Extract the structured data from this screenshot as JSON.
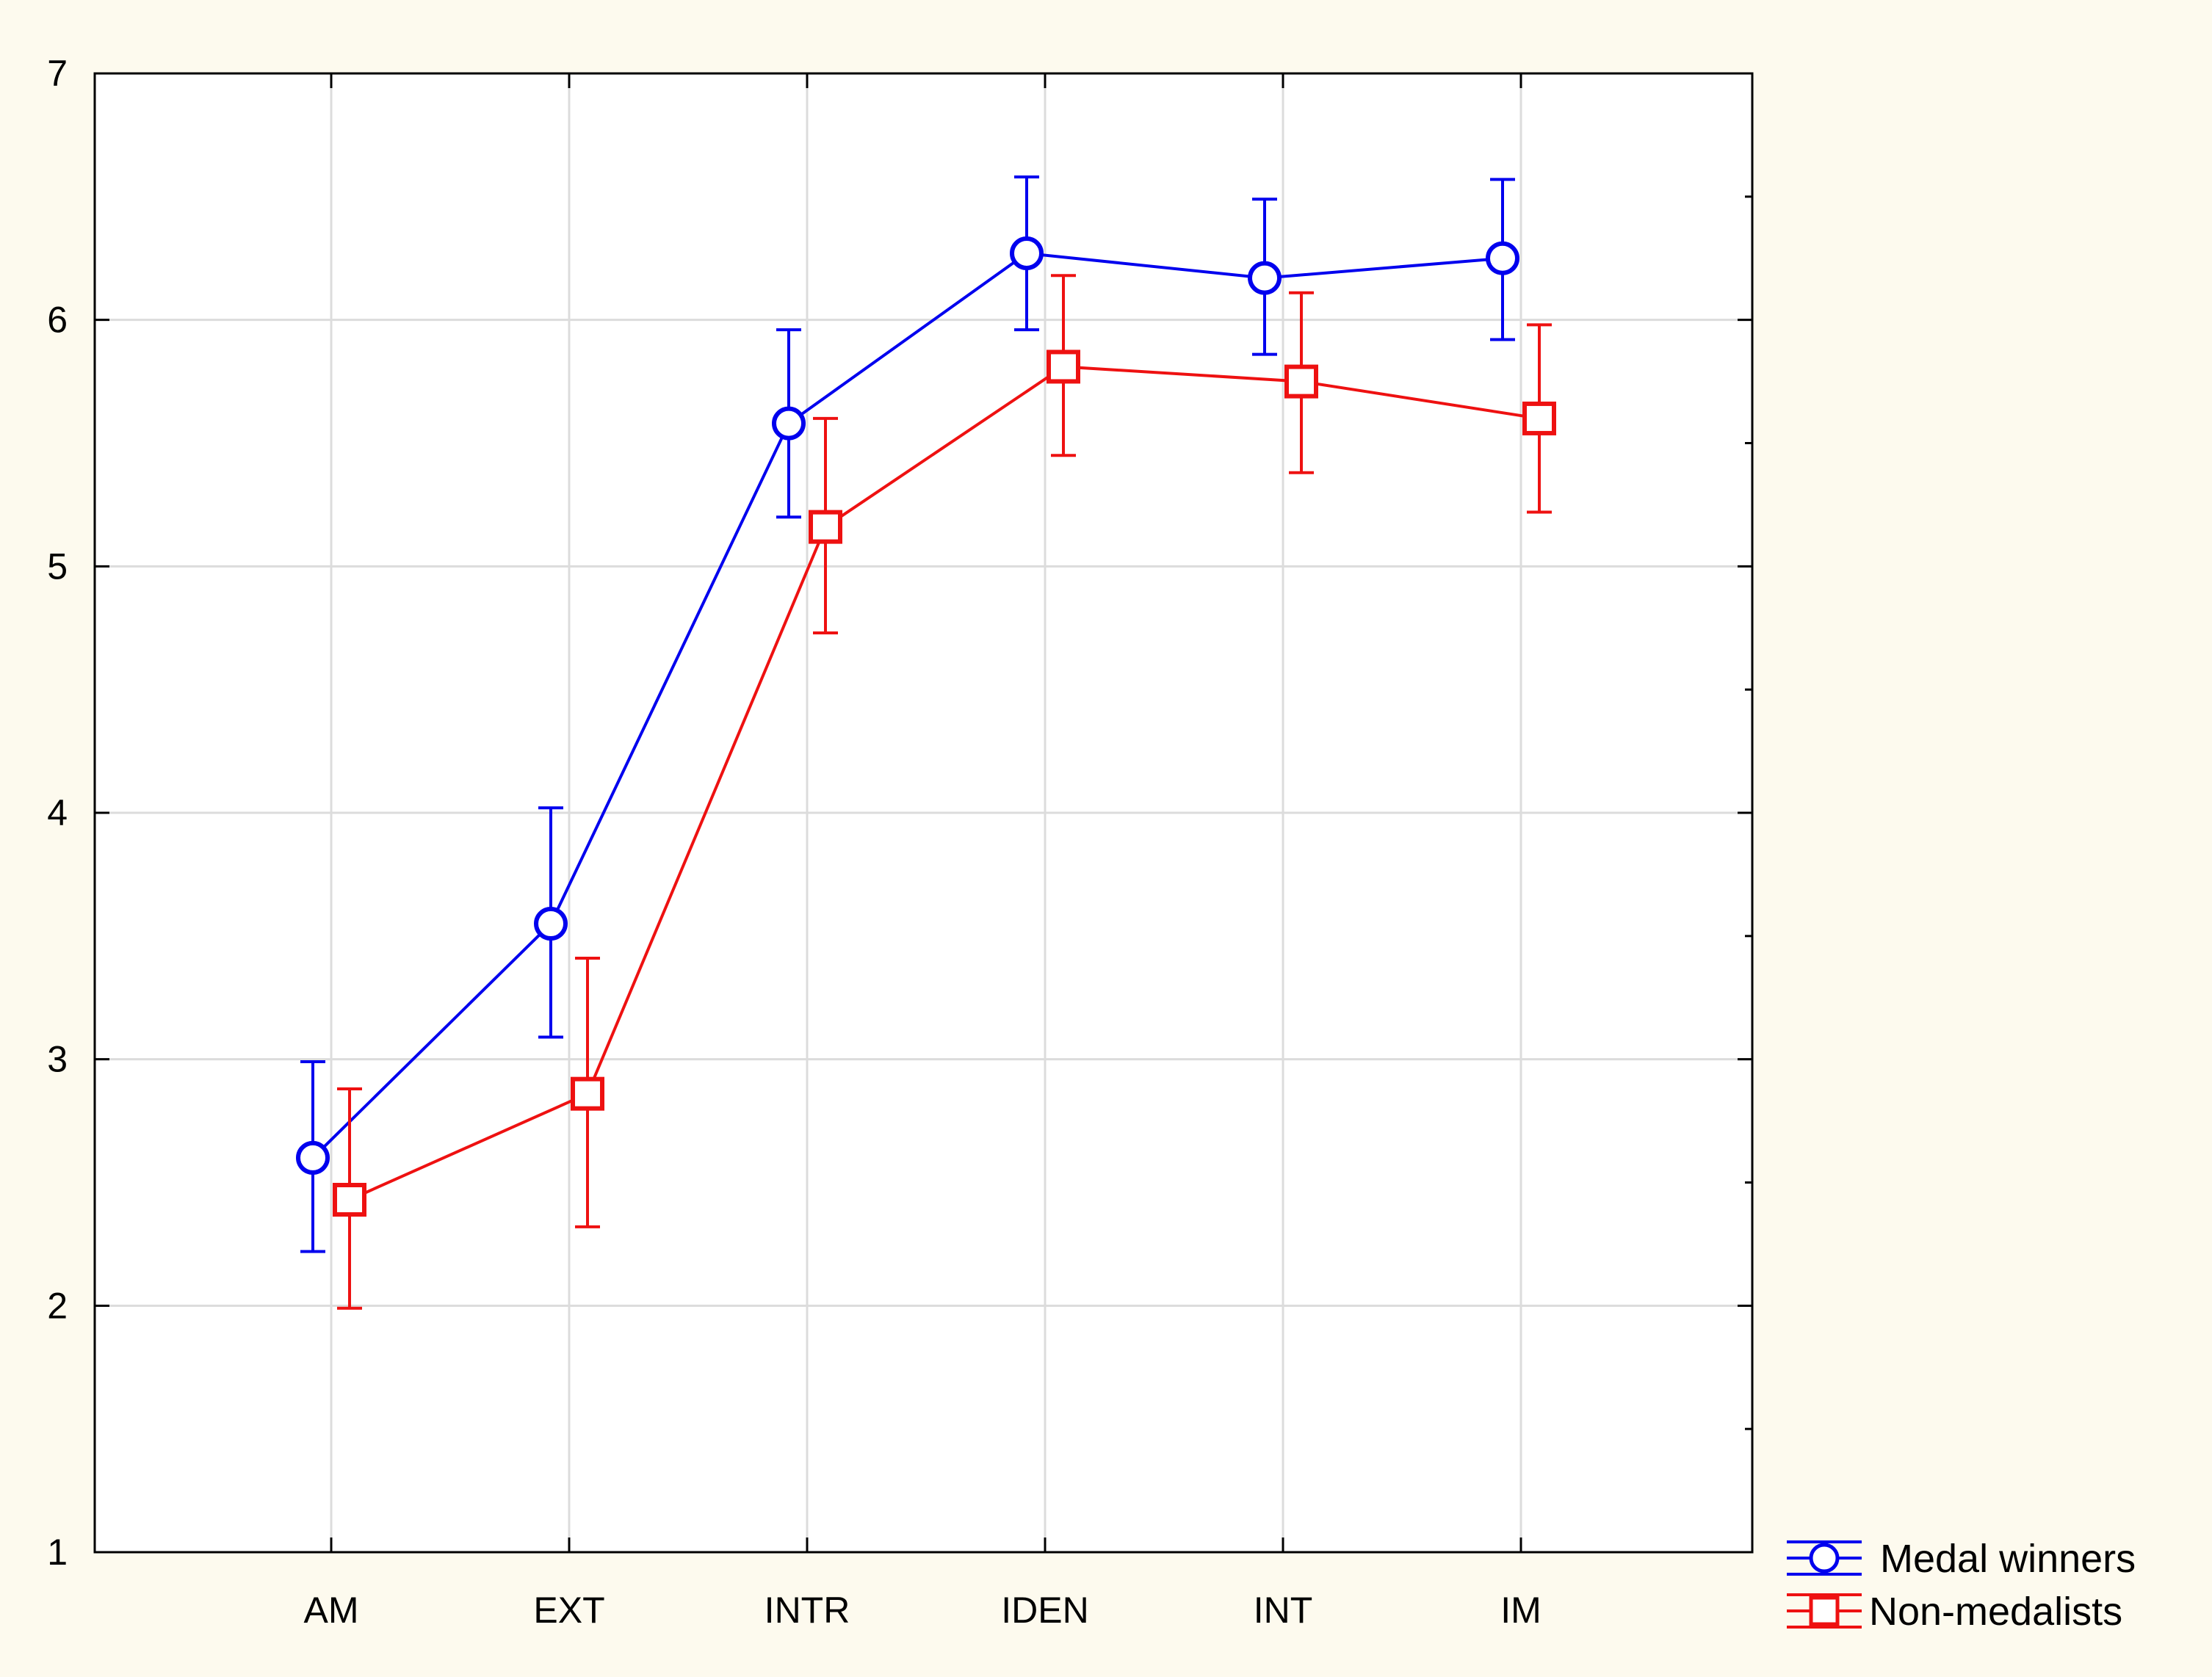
{
  "chart_data": {
    "type": "line",
    "title": "",
    "xlabel": "",
    "ylabel": "",
    "categories": [
      "AM",
      "EXT",
      "INTR",
      "IDEN",
      "INT",
      "IM"
    ],
    "ylim": [
      1,
      7
    ],
    "yticks": [
      1,
      2,
      3,
      4,
      5,
      6,
      7
    ],
    "grid": true,
    "legend_position": "bottom-right-outside",
    "series": [
      {
        "name": "Medal winners",
        "marker": "circle",
        "color": "#0000ee",
        "values": [
          2.6,
          3.55,
          5.58,
          6.27,
          6.17,
          6.25
        ],
        "error_low": [
          2.22,
          3.09,
          5.2,
          5.96,
          5.86,
          5.92
        ],
        "error_high": [
          2.99,
          4.02,
          5.96,
          6.58,
          6.49,
          6.57
        ]
      },
      {
        "name": "Non-medalists",
        "marker": "square",
        "color": "#ee1111",
        "values": [
          2.43,
          2.86,
          5.16,
          5.81,
          5.75,
          5.6
        ],
        "error_low": [
          1.99,
          2.32,
          4.73,
          5.45,
          5.38,
          5.22
        ],
        "error_high": [
          2.88,
          3.41,
          5.6,
          6.18,
          6.11,
          5.98
        ]
      }
    ]
  }
}
